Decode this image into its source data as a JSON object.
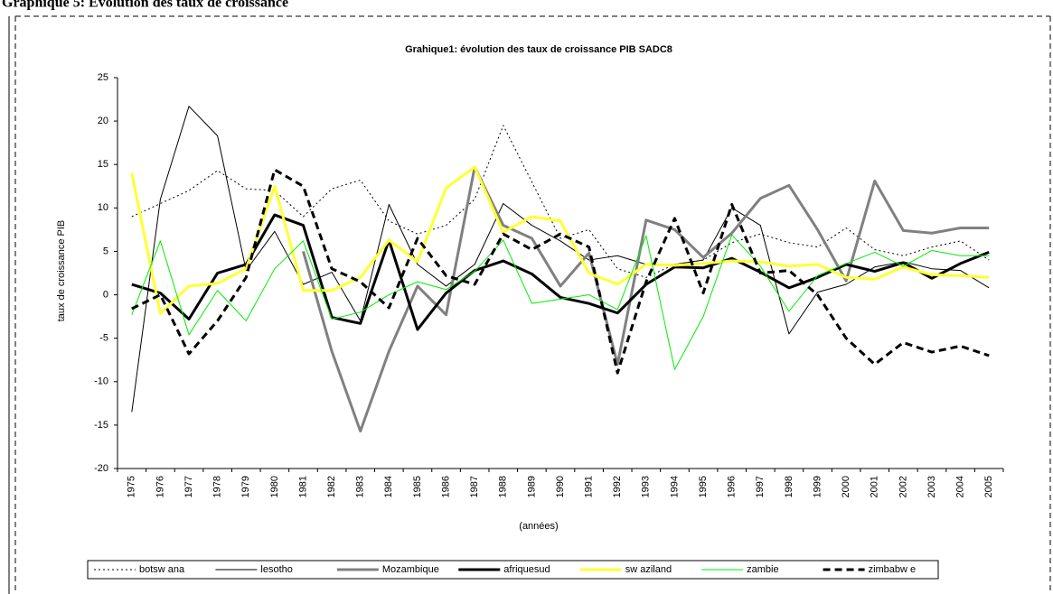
{
  "heading": "Graphique 5: Evolution des taux de croissance",
  "chart_data": {
    "type": "line",
    "title": "Grahique1: évolution des taux de croissance PIB SADC8",
    "y_label": "taux de croissance PIB",
    "x_label": "(années)",
    "categories": [
      "1975",
      "1976",
      "1977",
      "1978",
      "1979",
      "1980",
      "1981",
      "1982",
      "1983",
      "1984",
      "1985",
      "1986",
      "1987",
      "1988",
      "1989",
      "1990",
      "1991",
      "1992",
      "1993",
      "1994",
      "1995",
      "1996",
      "1997",
      "1998",
      "1999",
      "2000",
      "2001",
      "2002",
      "2003",
      "2004",
      "2005"
    ],
    "ylim": [
      -20,
      25
    ],
    "yticks": [
      -20,
      -15,
      -10,
      -5,
      0,
      5,
      10,
      15,
      20,
      25
    ],
    "grid": false,
    "legend": "bottom",
    "series": [
      {
        "name": "botsw ana",
        "color": "#000000",
        "style": "dotted",
        "width": 1,
        "values": [
          9,
          10.5,
          12,
          14.3,
          12.2,
          12,
          9,
          12.2,
          13.2,
          8.5,
          7,
          8,
          11,
          19.5,
          13,
          6.5,
          7.5,
          3,
          2,
          3.5,
          4,
          6,
          7,
          6,
          5.5,
          7.7,
          5.2,
          4.5,
          5.5,
          6.2,
          4
        ]
      },
      {
        "name": "lesotho",
        "color": "#000000",
        "style": "solid",
        "width": 1,
        "values": [
          -13.5,
          11,
          21.7,
          18.3,
          2.8,
          7.3,
          1.2,
          2.6,
          -3,
          10.4,
          3.5,
          1,
          3.5,
          10.5,
          8,
          6.2,
          4,
          4.5,
          3.5,
          3.5,
          4,
          10,
          8,
          -4.5,
          0.3,
          1.2,
          3.2,
          3.8,
          3,
          2.8,
          0.8
        ]
      },
      {
        "name": "Mozambique",
        "color": "#808080",
        "style": "solid",
        "width": 3,
        "values": [
          null,
          null,
          null,
          null,
          null,
          null,
          5,
          -6.5,
          -15.7,
          -6.5,
          1,
          -2.3,
          14.7,
          8,
          6.5,
          1,
          4.8,
          -8,
          8.6,
          7.5,
          4.3,
          7.1,
          11.1,
          12.6,
          7.5,
          1.6,
          13.1,
          7.4,
          7.1,
          7.7,
          7.7
        ]
      },
      {
        "name": "afriquesud",
        "color": "#000000",
        "style": "solid",
        "width": 3,
        "values": [
          1.2,
          0.2,
          -2.8,
          2.5,
          3.5,
          9.2,
          8,
          -2.6,
          -3.3,
          6.3,
          -4,
          0.2,
          2.8,
          3.9,
          2.4,
          -0.3,
          -1,
          -2.1,
          1.2,
          3.2,
          3.1,
          4.2,
          2.6,
          0.8,
          2,
          3.5,
          2.7,
          3.7,
          1.9,
          3.6,
          4.9
        ]
      },
      {
        "name": "sw aziland",
        "color": "#ffff33",
        "style": "solid",
        "width": 3,
        "values": [
          14,
          -2.2,
          1,
          1.3,
          3,
          12.5,
          0.5,
          0.5,
          2,
          6.3,
          3.8,
          12.3,
          14.7,
          7.2,
          9,
          8.5,
          2.5,
          1.2,
          3.5,
          3.4,
          3.6,
          3.9,
          3.8,
          3.3,
          3.5,
          2,
          1.8,
          3.2,
          2.3,
          2.2,
          2
        ]
      },
      {
        "name": "zambie",
        "color": "#00ee00",
        "style": "solid",
        "width": 1,
        "values": [
          -2.3,
          6.2,
          -4.6,
          0.5,
          -3,
          3,
          6.2,
          -2.8,
          -2,
          0,
          1.5,
          0.6,
          2.7,
          6.3,
          -1,
          -0.5,
          0,
          -1.7,
          6.8,
          -8.6,
          -2.5,
          6.9,
          3.3,
          -1.9,
          2.2,
          3.6,
          4.9,
          3.3,
          5.1,
          4.5,
          4.5
        ]
      },
      {
        "name": "zimbabw e",
        "color": "#000000",
        "style": "dashed",
        "width": 3,
        "values": [
          -1.6,
          0,
          -6.8,
          -3,
          2,
          14.4,
          12.5,
          3,
          1.5,
          -1.5,
          6.5,
          2.2,
          1.2,
          7,
          5.2,
          7,
          5.5,
          -9,
          1.5,
          8.8,
          0.2,
          10.4,
          2.5,
          2.8,
          0,
          -5,
          -8,
          -5.5,
          -6.6,
          -5.9,
          -7
        ]
      }
    ]
  }
}
